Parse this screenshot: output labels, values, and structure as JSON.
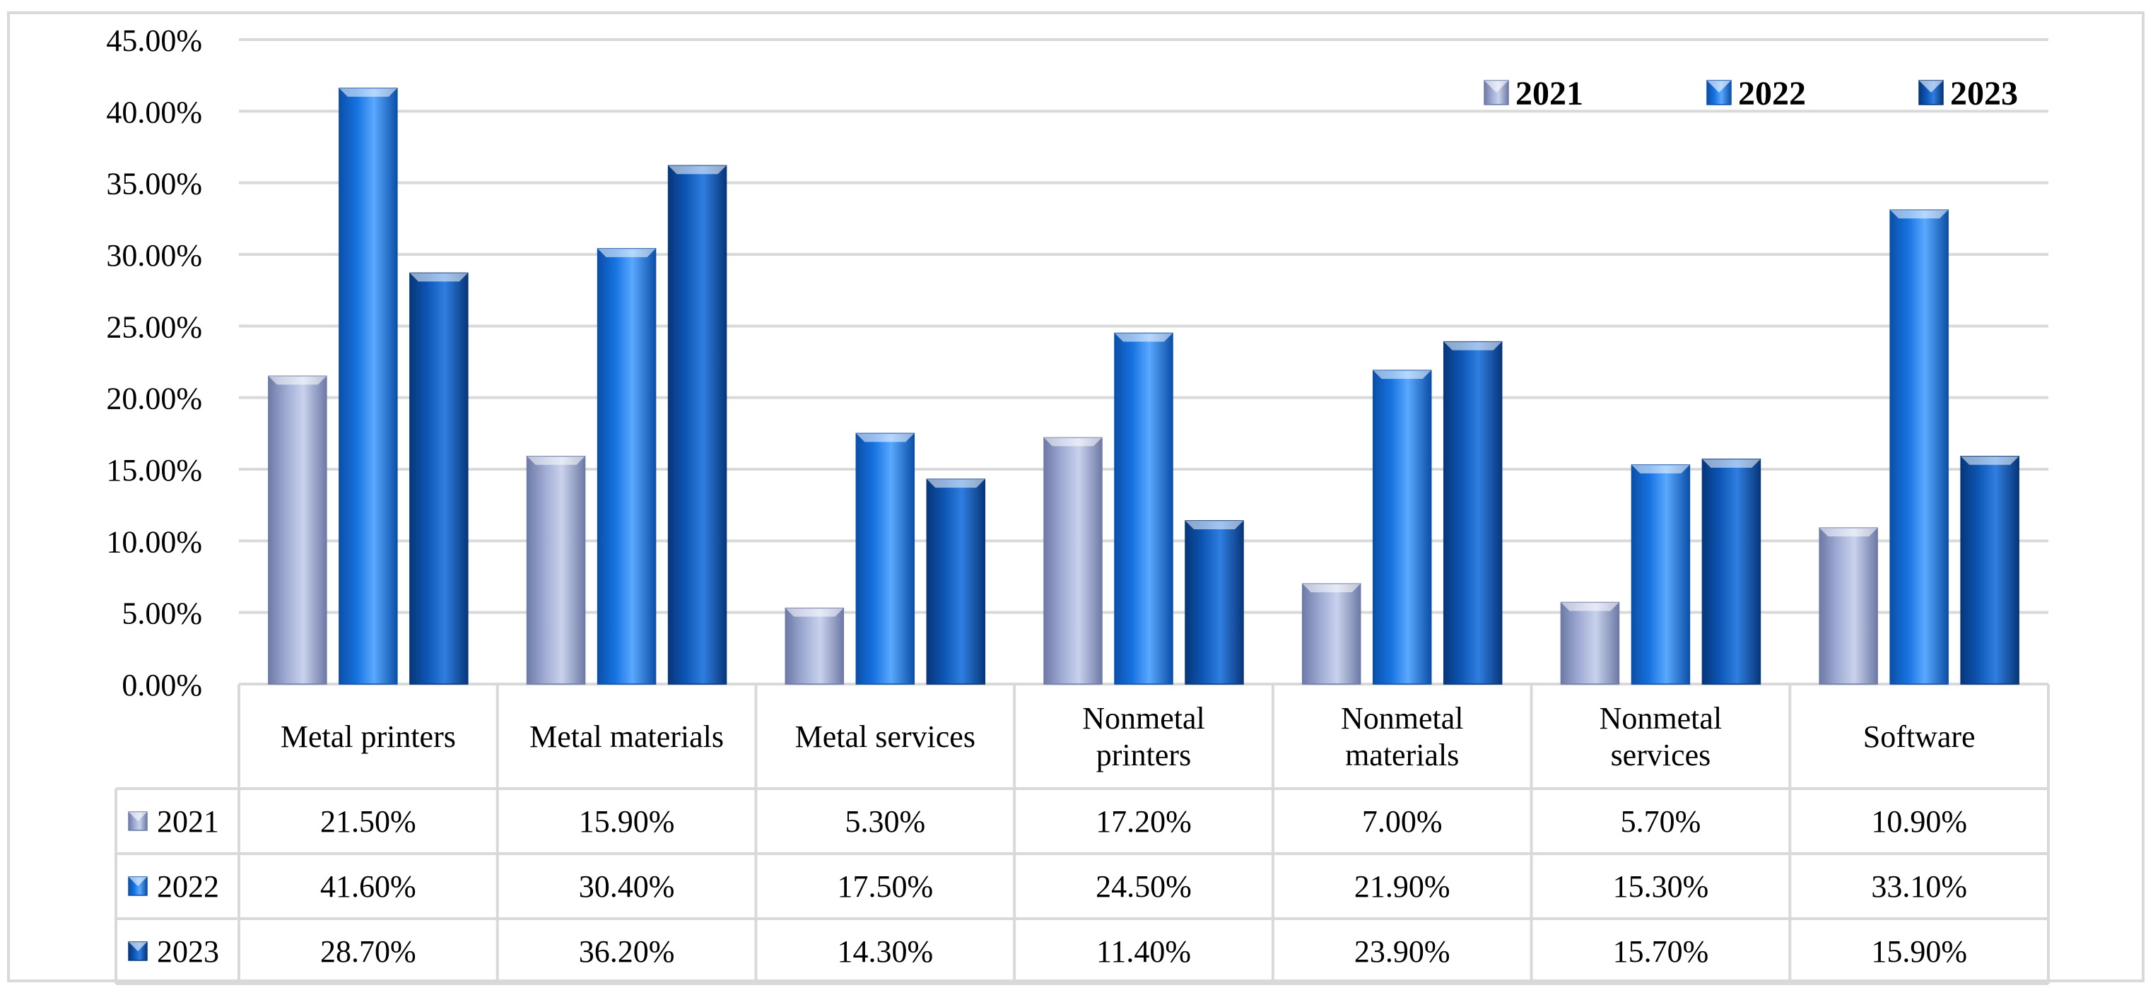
{
  "chart_data": {
    "type": "bar",
    "title": "",
    "xlabel": "",
    "ylabel": "",
    "ylim": [
      0,
      45
    ],
    "y_tick_step": 5,
    "y_tick_format": "percent_2dp",
    "grid": true,
    "legend_position": "top-right",
    "categories": [
      [
        "Metal printers"
      ],
      [
        "Metal materials"
      ],
      [
        "Metal services"
      ],
      [
        "Nonmetal",
        "printers"
      ],
      [
        "Nonmetal",
        "materials"
      ],
      [
        "Nonmetal",
        "services"
      ],
      [
        "Software"
      ]
    ],
    "series": [
      {
        "name": "2021",
        "values": [
          21.5,
          15.9,
          5.3,
          17.2,
          7.0,
          5.7,
          10.9
        ],
        "table_values": [
          "21.50%",
          "15.90%",
          "5.30%",
          "17.20%",
          "7.00%",
          "5.70%",
          "10.90%"
        ],
        "color_top": "#c9d2ec",
        "color_mid": "#9eaad3",
        "color_edge": "#6d7aa6"
      },
      {
        "name": "2022",
        "values": [
          41.6,
          30.4,
          17.5,
          24.5,
          21.9,
          15.3,
          33.1
        ],
        "table_values": [
          "41.60%",
          "30.40%",
          "17.50%",
          "24.50%",
          "21.90%",
          "15.30%",
          "33.10%"
        ],
        "color_top": "#5aa8ff",
        "color_mid": "#1672e0",
        "color_edge": "#0b4fa8"
      },
      {
        "name": "2023",
        "values": [
          28.7,
          36.2,
          14.3,
          11.4,
          23.9,
          15.7,
          15.9
        ],
        "table_values": [
          "28.70%",
          "36.20%",
          "14.30%",
          "11.40%",
          "23.90%",
          "15.70%",
          "15.90%"
        ],
        "color_top": "#2f7ee0",
        "color_mid": "#0d56b5",
        "color_edge": "#07367a"
      }
    ]
  }
}
